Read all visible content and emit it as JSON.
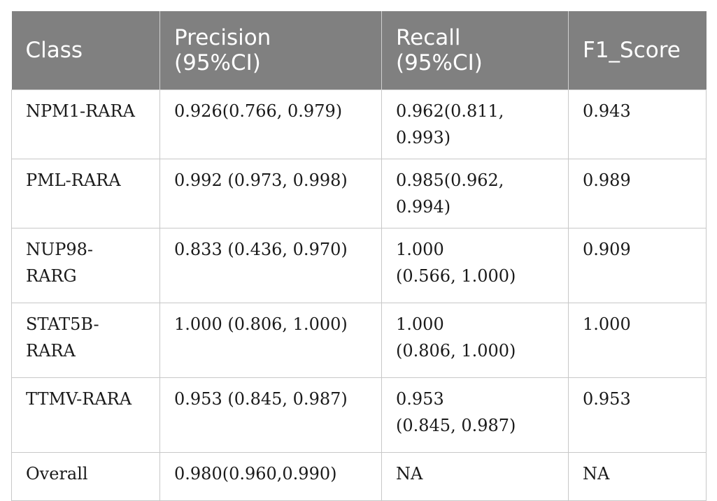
{
  "table": {
    "headers": {
      "class": "Class",
      "precision_line1": "Precision",
      "precision_line2": "(95%CI)",
      "recall_line1": "Recall",
      "recall_line2": "(95%CI)",
      "f1": "F1_Score"
    },
    "rows": [
      {
        "class_line1": "NPM1-RARA",
        "class_line2": "",
        "precision": "0.926(0.766, 0.979)",
        "recall_line1": "0.962(0.811, 0.993)",
        "recall_line2": "",
        "f1": "0.943"
      },
      {
        "class_line1": "PML-RARA",
        "class_line2": "",
        "precision": "0.992 (0.973, 0.998)",
        "recall_line1": "0.985(0.962, 0.994)",
        "recall_line2": "",
        "f1": "0.989"
      },
      {
        "class_line1": "NUP98-",
        "class_line2": "RARG",
        "precision": "0.833 (0.436, 0.970)",
        "recall_line1": "1.000",
        "recall_line2": "(0.566, 1.000)",
        "f1": "0.909"
      },
      {
        "class_line1": "STAT5B-",
        "class_line2": "RARA",
        "precision": "1.000 (0.806, 1.000)",
        "recall_line1": "1.000",
        "recall_line2": "(0.806, 1.000)",
        "f1": "1.000"
      },
      {
        "class_line1": "TTMV-RARA",
        "class_line2": "",
        "precision": "0.953 (0.845, 0.987)",
        "recall_line1": "0.953",
        "recall_line2": "(0.845, 0.987)",
        "f1": "0.953"
      },
      {
        "class_line1": "Overall",
        "class_line2": "",
        "precision": "0.980(0.960,0.990)",
        "recall_line1": "NA",
        "recall_line2": "",
        "f1": "NA"
      }
    ]
  }
}
